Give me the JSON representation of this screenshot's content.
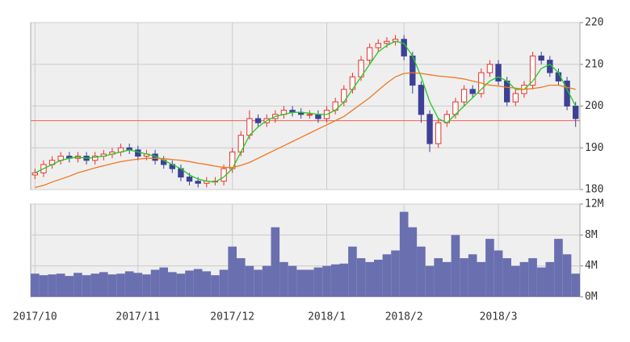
{
  "chart_data": [
    {
      "type": "candlestick",
      "categories": [
        "2017/10",
        null,
        null,
        null,
        null,
        null,
        null,
        null,
        null,
        null,
        null,
        null,
        "2017/11",
        null,
        null,
        null,
        null,
        null,
        null,
        null,
        null,
        null,
        null,
        "2017/12",
        null,
        null,
        null,
        null,
        null,
        null,
        null,
        null,
        null,
        null,
        "2018/1",
        null,
        null,
        null,
        null,
        null,
        null,
        null,
        null,
        "2018/2",
        null,
        null,
        null,
        null,
        null,
        null,
        null,
        null,
        null,
        null,
        "2018/3",
        null,
        null,
        null,
        null,
        null,
        null,
        null,
        null,
        null
      ],
      "open": [
        183.5,
        184,
        186,
        187,
        188,
        187.5,
        188,
        187,
        188,
        188.5,
        189,
        190,
        189.5,
        188,
        188.5,
        187,
        186,
        185,
        183,
        182,
        181.5,
        182,
        182,
        185,
        189,
        193,
        197,
        196,
        197,
        198,
        199,
        198.5,
        198,
        198,
        197,
        199,
        201,
        204,
        207,
        211,
        214,
        215,
        215.5,
        216,
        212,
        205,
        198,
        191,
        196,
        198,
        201,
        204,
        203,
        208,
        210,
        206,
        201,
        203,
        205,
        212,
        211,
        208,
        206,
        200
      ],
      "high": [
        185,
        187,
        188,
        189,
        189,
        189,
        189,
        189,
        189.5,
        190,
        191,
        191,
        190.5,
        189.5,
        189.5,
        188,
        187,
        186,
        184,
        183,
        183,
        183,
        186,
        190,
        194,
        199,
        198,
        198,
        199,
        200,
        200,
        199.5,
        199,
        199,
        200,
        202,
        205,
        208,
        212,
        215,
        216,
        216.5,
        217,
        217,
        213,
        206,
        199,
        197,
        199,
        202,
        205,
        205,
        209,
        211,
        211,
        207,
        204,
        206,
        213,
        213,
        212,
        209,
        207,
        201
      ],
      "low": [
        182.5,
        183,
        185,
        186,
        186.5,
        186.5,
        186,
        186,
        187,
        187.5,
        188,
        188.5,
        187,
        187,
        186,
        185,
        184,
        182,
        181,
        180.5,
        180.5,
        181,
        181,
        184,
        188,
        192,
        195,
        195,
        196,
        197,
        197.5,
        197,
        197,
        196,
        196,
        198,
        200,
        203,
        206,
        210,
        213,
        214,
        214.5,
        211,
        203,
        196,
        189,
        190,
        195,
        197,
        200,
        202,
        202,
        207,
        205,
        200,
        200,
        202,
        204,
        210,
        207,
        205,
        199,
        195
      ],
      "close": [
        184,
        186,
        187,
        188,
        187.5,
        188,
        187,
        188,
        188.5,
        189,
        190,
        189.5,
        188,
        188.5,
        187,
        186,
        185,
        183,
        182,
        181.5,
        182,
        182,
        185,
        189,
        193,
        197,
        196,
        197,
        198,
        199,
        198.5,
        198,
        198,
        197,
        199,
        201,
        204,
        207,
        211,
        214,
        215,
        215.5,
        216,
        212,
        205,
        198,
        191,
        196,
        198,
        201,
        204,
        203,
        208,
        210,
        206,
        201,
        203,
        205,
        212,
        211,
        208,
        206,
        200,
        197
      ],
      "up_color": "#e8322c",
      "down_color": "#3c4196",
      "series": [
        {
          "color": "#22cc22",
          "values": [
            184,
            185,
            186,
            187,
            187.5,
            187.8,
            187.5,
            187.7,
            188,
            188.5,
            189,
            189.5,
            189,
            188.5,
            188,
            187,
            186,
            185,
            183.5,
            182.5,
            182,
            181.8,
            183,
            185,
            189,
            193,
            195,
            196.5,
            197.5,
            198,
            198.5,
            198.5,
            198.3,
            198,
            198,
            199,
            201,
            204,
            207,
            210,
            213,
            214.5,
            215.5,
            215,
            212,
            207,
            201,
            197,
            196,
            198,
            200,
            202,
            204,
            206,
            207,
            206,
            204,
            204,
            206,
            209,
            210,
            208,
            204,
            200
          ]
        },
        {
          "color": "#f07820",
          "values": [
            180.5,
            181,
            181.8,
            182.5,
            183.2,
            184,
            184.6,
            185.2,
            185.7,
            186.2,
            186.7,
            187,
            187.3,
            187.5,
            187.5,
            187.4,
            187.2,
            187,
            186.7,
            186.3,
            186,
            185.6,
            185.3,
            185.3,
            185.8,
            186.5,
            187.5,
            188.5,
            189.5,
            190.5,
            191.5,
            192.5,
            193.5,
            194.5,
            195.5,
            196.5,
            197.5,
            199,
            200.5,
            202,
            203.8,
            205.5,
            207,
            207.8,
            208,
            207.8,
            207.5,
            207.2,
            207,
            206.8,
            206.5,
            206,
            205.5,
            205,
            204.8,
            204.5,
            204.3,
            204,
            204.2,
            204.5,
            205,
            205,
            204.5,
            204
          ]
        }
      ],
      "reference_line": 196.5,
      "reference_color": "#f06050",
      "ylim": [
        180,
        220
      ],
      "yticks": [
        180,
        190,
        200,
        210,
        220
      ],
      "grid": true
    },
    {
      "type": "bar",
      "color": "#6a6fb0",
      "values": [
        3,
        2.8,
        2.9,
        3,
        2.7,
        3.1,
        2.8,
        3,
        3.2,
        2.9,
        3,
        3.3,
        3.1,
        2.9,
        3.5,
        3.8,
        3.2,
        3,
        3.4,
        3.6,
        3.3,
        2.8,
        3.5,
        6.5,
        5,
        4,
        3.5,
        4,
        9,
        4.5,
        4,
        3.5,
        3.5,
        3.8,
        4,
        4.2,
        4.3,
        6.5,
        5,
        4.5,
        4.8,
        5.5,
        6,
        11,
        9,
        6.5,
        4,
        5,
        4.5,
        8,
        5,
        5.5,
        4.5,
        7.5,
        6,
        5,
        4,
        4.5,
        5,
        3.8,
        4.5,
        7.5,
        5.5,
        3
      ],
      "ylim": [
        0,
        12
      ],
      "yticks": [
        {
          "value": 0,
          "label": "0M"
        },
        {
          "value": 4,
          "label": "4M"
        },
        {
          "value": 8,
          "label": "8M"
        },
        {
          "value": 12,
          "label": "12M"
        }
      ],
      "grid": true
    }
  ]
}
